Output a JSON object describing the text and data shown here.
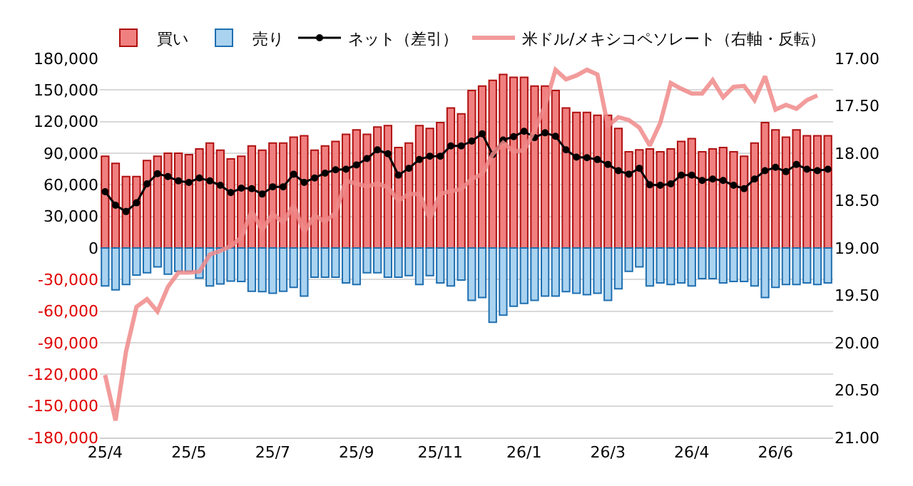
{
  "chart_data": {
    "type": "bar",
    "stacked": true,
    "categories": [
      "25/4",
      null,
      null,
      null,
      null,
      null,
      null,
      null,
      "25/5",
      null,
      null,
      null,
      null,
      null,
      null,
      null,
      "25/7",
      null,
      null,
      null,
      null,
      null,
      null,
      null,
      "25/9",
      null,
      null,
      null,
      null,
      null,
      null,
      null,
      "25/11",
      null,
      null,
      null,
      null,
      null,
      null,
      null,
      "26/1",
      null,
      null,
      null,
      null,
      null,
      null,
      null,
      "26/3",
      null,
      null,
      null,
      null,
      null,
      null,
      null,
      "26/4",
      null,
      null,
      null,
      null,
      null,
      null,
      null,
      "26/6",
      null,
      null,
      null,
      null,
      null
    ],
    "series": [
      {
        "name": "買い",
        "color": "#f08080",
        "values": [
          87200,
          80300,
          67800,
          67800,
          83100,
          87200,
          90000,
          90000,
          88600,
          94100,
          99700,
          92800,
          84500,
          87200,
          96900,
          92800,
          99700,
          99700,
          105200,
          106600,
          92800,
          96900,
          101100,
          108000,
          112100,
          108000,
          114900,
          116300,
          95500,
          99700,
          116300,
          113500,
          119100,
          132900,
          127400,
          149500,
          153700,
          159200,
          164800,
          162000,
          162000,
          153700,
          153700,
          149500,
          132900,
          128800,
          128800,
          126000,
          126000,
          113500,
          91400,
          93200,
          94100,
          91400,
          94100,
          101100,
          103800,
          91400,
          94100,
          95500,
          91400,
          87200,
          99700,
          119100,
          112100,
          105200,
          112100,
          106600,
          106600,
          106600
        ]
      },
      {
        "name": "売り",
        "color": "#aad3f0",
        "values": [
          -36000,
          -39700,
          -34600,
          -25800,
          -23500,
          -18000,
          -24900,
          -22200,
          -22200,
          -28600,
          -36000,
          -34200,
          -31400,
          -31800,
          -41100,
          -41500,
          -42900,
          -41100,
          -37400,
          -45700,
          -27700,
          -27700,
          -27700,
          -33200,
          -34600,
          -23500,
          -23500,
          -27700,
          -27700,
          -26300,
          -34600,
          -26300,
          -33200,
          -36000,
          -30500,
          -49800,
          -47100,
          -70600,
          -63700,
          -55400,
          -52600,
          -49800,
          -45700,
          -45700,
          -41500,
          -42900,
          -44300,
          -42900,
          -49800,
          -38800,
          -22200,
          -18000,
          -36000,
          -33200,
          -34600,
          -33200,
          -36000,
          -29100,
          -29100,
          -33200,
          -31800,
          -31800,
          -36000,
          -47100,
          -37400,
          -34600,
          -34600,
          -33200,
          -34600,
          -33200
        ]
      },
      {
        "name": "ネット（差引）",
        "type": "line",
        "color": "#000000",
        "marker": "circle",
        "values": [
          53500,
          40600,
          34600,
          42900,
          60900,
          70600,
          67800,
          63700,
          62300,
          66500,
          63700,
          59500,
          52600,
          56800,
          56300,
          51200,
          58100,
          58100,
          70100,
          62300,
          66500,
          71100,
          74300,
          74800,
          78900,
          84900,
          93200,
          89500,
          69200,
          75700,
          84000,
          87200,
          87200,
          96900,
          96900,
          101500,
          108500,
          88600,
          102500,
          105700,
          110800,
          104800,
          109400,
          106100,
          93200,
          86300,
          85800,
          84000,
          79400,
          73400,
          70100,
          75700,
          60000,
          59500,
          60900,
          69200,
          69200,
          64100,
          65500,
          64100,
          59500,
          56300,
          65500,
          73400,
          76600,
          72500,
          79400,
          74800,
          73400,
          74800
        ]
      },
      {
        "name": "米ドル/メキシコペソレート（右軸・反転）",
        "type": "line",
        "axis": "y2",
        "color": "#f08a8a",
        "marker": "none",
        "values": [
          20.34,
          20.82,
          20.09,
          19.62,
          19.54,
          19.67,
          19.41,
          19.26,
          19.26,
          19.25,
          19.07,
          19.03,
          18.98,
          18.89,
          18.61,
          18.81,
          18.64,
          18.73,
          18.55,
          18.83,
          18.66,
          18.72,
          18.63,
          18.29,
          18.32,
          18.35,
          18.32,
          18.36,
          18.5,
          18.43,
          18.43,
          18.69,
          18.43,
          18.4,
          18.38,
          18.27,
          18.22,
          18.01,
          17.89,
          17.98,
          17.97,
          17.76,
          17.5,
          17.12,
          17.22,
          17.18,
          17.12,
          17.17,
          17.71,
          17.62,
          17.65,
          17.73,
          17.92,
          17.68,
          17.26,
          17.32,
          17.37,
          17.37,
          17.23,
          17.41,
          17.3,
          17.29,
          17.44,
          17.19,
          17.54,
          17.49,
          17.53,
          17.44,
          17.39,
          null
        ]
      }
    ],
    "ylim": [
      -180000,
      180000
    ],
    "yticks": [
      {
        "value": 180000,
        "label": "180,000"
      },
      {
        "value": 150000,
        "label": "150,000"
      },
      {
        "value": 120000,
        "label": "120,000"
      },
      {
        "value": 90000,
        "label": "90,000"
      },
      {
        "value": 60000,
        "label": "60,000"
      },
      {
        "value": 30000,
        "label": "30,000"
      },
      0,
      {
        "value": -30000,
        "label": "-30,000"
      },
      {
        "value": -60000,
        "label": "-60,000"
      },
      {
        "value": -90000,
        "label": "-90,000"
      },
      {
        "value": -120000,
        "label": "-120,000"
      },
      {
        "value": -150000,
        "label": "-150,000"
      },
      {
        "value": -180000,
        "label": "-180,000"
      }
    ],
    "y2lim": [
      21,
      17
    ],
    "y2ticks": [
      {
        "value": 17,
        "label": "17.00"
      },
      {
        "value": 17.5,
        "label": "17.50"
      },
      {
        "value": 18,
        "label": "18.00"
      },
      {
        "value": 18.5,
        "label": "18.50"
      },
      {
        "value": 19,
        "label": "19.00"
      },
      {
        "value": 19.5,
        "label": "19.50"
      },
      {
        "value": 20,
        "label": "20.00"
      },
      {
        "value": 20.5,
        "label": "20.50"
      },
      {
        "value": 21,
        "label": "21.00"
      }
    ],
    "grid": "y",
    "legend": "top"
  }
}
